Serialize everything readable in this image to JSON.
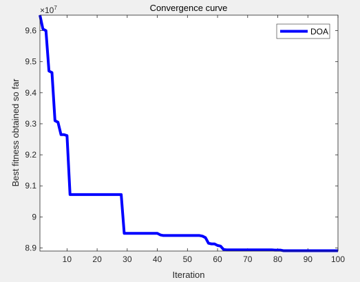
{
  "chart_data": {
    "type": "line",
    "title": "Convergence curve",
    "xlabel": "Iteration",
    "ylabel": "Best fitness obtained so far",
    "exponent_base": "×10",
    "exponent_power": "7",
    "xlim": [
      1,
      100
    ],
    "ylim": [
      8.89,
      9.65
    ],
    "xticks": [
      10,
      20,
      30,
      40,
      50,
      60,
      70,
      80,
      90,
      100
    ],
    "yticks": [
      8.9,
      9.0,
      9.1,
      9.2,
      9.3,
      9.4,
      9.5,
      9.6
    ],
    "ytick_labels": [
      "8.9",
      "9",
      "9.1",
      "9.2",
      "9.3",
      "9.4",
      "9.5",
      "9.6"
    ],
    "grid": false,
    "legend_position": "top-right",
    "series": [
      {
        "name": "DOA",
        "color": "#0000ff",
        "x": [
          1,
          2,
          3,
          4,
          5,
          6,
          7,
          8,
          9,
          10,
          11,
          12,
          13,
          14,
          15,
          16,
          17,
          18,
          19,
          20,
          21,
          22,
          23,
          24,
          25,
          26,
          27,
          28,
          29,
          30,
          31,
          32,
          33,
          34,
          35,
          36,
          37,
          38,
          39,
          40,
          41,
          42,
          43,
          44,
          45,
          46,
          47,
          48,
          49,
          50,
          51,
          52,
          53,
          54,
          55,
          56,
          57,
          58,
          59,
          60,
          61,
          62,
          63,
          64,
          65,
          66,
          67,
          68,
          69,
          70,
          71,
          72,
          73,
          74,
          75,
          76,
          77,
          78,
          79,
          80,
          81,
          82,
          83,
          84,
          85,
          86,
          87,
          88,
          89,
          90,
          91,
          92,
          93,
          94,
          95,
          96,
          97,
          98,
          99,
          100
        ],
        "values": [
          9.65,
          9.605,
          9.6,
          9.47,
          9.465,
          9.31,
          9.305,
          9.265,
          9.265,
          9.262,
          9.072,
          9.072,
          9.072,
          9.072,
          9.072,
          9.072,
          9.072,
          9.072,
          9.072,
          9.072,
          9.072,
          9.072,
          9.072,
          9.072,
          9.072,
          9.072,
          9.072,
          9.072,
          8.947,
          8.947,
          8.947,
          8.947,
          8.947,
          8.947,
          8.947,
          8.947,
          8.947,
          8.947,
          8.947,
          8.947,
          8.942,
          8.94,
          8.94,
          8.94,
          8.94,
          8.94,
          8.94,
          8.94,
          8.94,
          8.94,
          8.94,
          8.94,
          8.94,
          8.94,
          8.938,
          8.933,
          8.915,
          8.913,
          8.913,
          8.908,
          8.906,
          8.895,
          8.894,
          8.894,
          8.894,
          8.894,
          8.894,
          8.894,
          8.894,
          8.894,
          8.894,
          8.894,
          8.894,
          8.894,
          8.894,
          8.894,
          8.894,
          8.894,
          8.893,
          8.893,
          8.893,
          8.891,
          8.891,
          8.891,
          8.891,
          8.891,
          8.891,
          8.891,
          8.891,
          8.891,
          8.891,
          8.891,
          8.891,
          8.891,
          8.891,
          8.891,
          8.891,
          8.891,
          8.891,
          8.891
        ]
      }
    ]
  }
}
